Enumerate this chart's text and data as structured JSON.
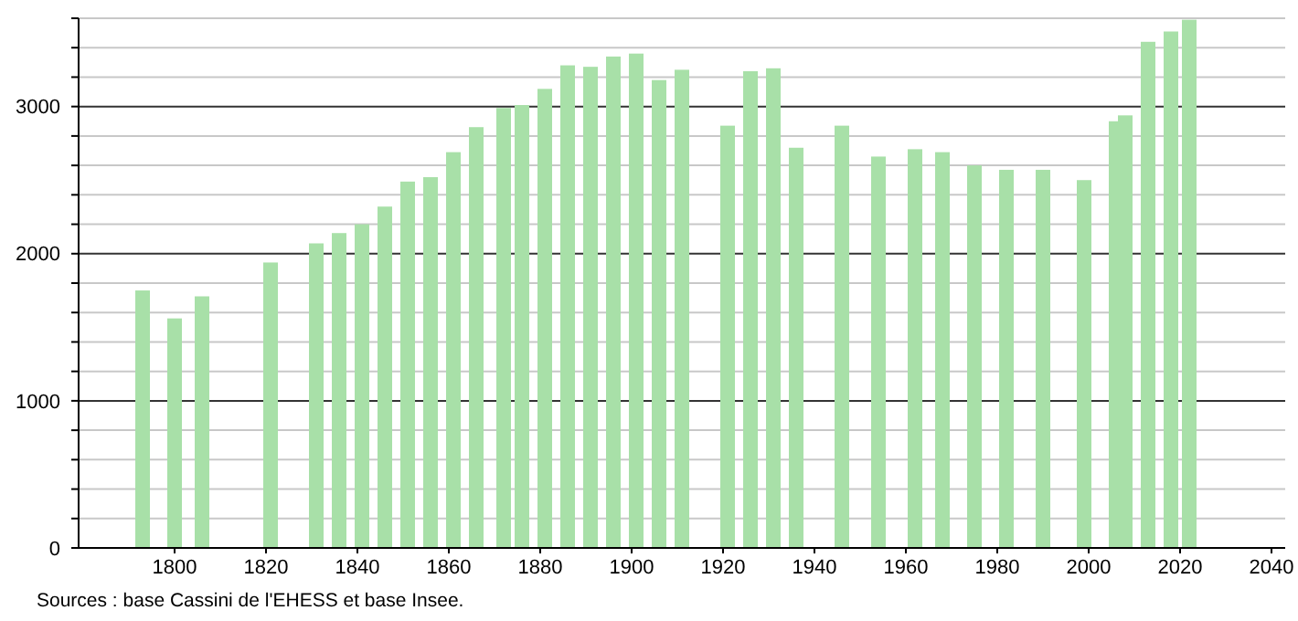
{
  "chart_data": {
    "type": "bar",
    "x": [
      1793,
      1800,
      1806,
      1821,
      1831,
      1836,
      1841,
      1846,
      1851,
      1856,
      1861,
      1866,
      1872,
      1876,
      1881,
      1886,
      1891,
      1896,
      1901,
      1906,
      1911,
      1921,
      1926,
      1931,
      1936,
      1946,
      1954,
      1962,
      1968,
      1975,
      1982,
      1990,
      1999,
      2006,
      2008,
      2013,
      2018,
      2022
    ],
    "values": [
      1750,
      1560,
      1710,
      1940,
      2070,
      2140,
      2200,
      2320,
      2490,
      2520,
      2690,
      2860,
      2990,
      3010,
      3120,
      3280,
      3270,
      3340,
      3360,
      3180,
      3250,
      2870,
      3240,
      3260,
      2720,
      2870,
      2660,
      2710,
      2690,
      2600,
      2570,
      2570,
      2500,
      2900,
      2940,
      3440,
      3510,
      3590
    ],
    "color": "#a8e0a8",
    "xlim": [
      1779,
      2043
    ],
    "xticks": [
      1800,
      1820,
      1840,
      1860,
      1880,
      1900,
      1920,
      1940,
      1960,
      1980,
      2000,
      2020,
      2040
    ],
    "ylim": [
      0,
      3600
    ],
    "yticks": [
      0,
      {
        "value": 200,
        "label": null
      },
      {
        "value": 400,
        "label": null
      },
      {
        "value": 600,
        "label": null
      },
      {
        "value": 800,
        "label": null
      },
      1000,
      {
        "value": 1200,
        "label": null
      },
      {
        "value": 1400,
        "label": null
      },
      {
        "value": 1600,
        "label": null
      },
      {
        "value": 1800,
        "label": null
      },
      2000,
      {
        "value": 2200,
        "label": null
      },
      {
        "value": 2400,
        "label": null
      },
      {
        "value": 2600,
        "label": null
      },
      {
        "value": 2800,
        "label": null
      },
      3000,
      {
        "value": 3200,
        "label": null
      },
      {
        "value": 3400,
        "label": null
      },
      {
        "value": 3600,
        "label": null
      }
    ],
    "grid": "y",
    "annotations": [
      "Sources : base Cassini de l'EHESS et base Insee."
    ]
  }
}
